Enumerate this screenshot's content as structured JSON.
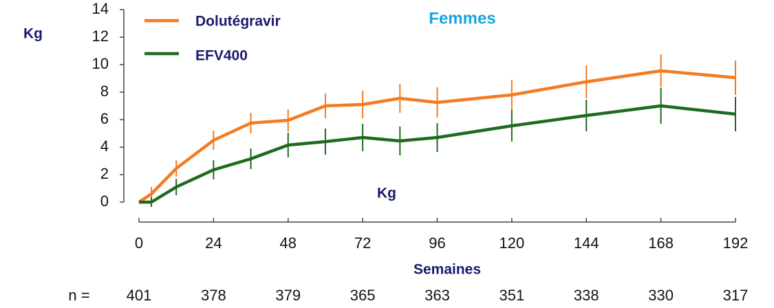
{
  "chart_data": {
    "type": "line",
    "title": "Femmes",
    "ylabel": "Kg",
    "xlabel": "Semaines",
    "annotation": "Kg",
    "series": [
      {
        "name": "Dolutégravir",
        "color": "#f47b20",
        "x": [
          0,
          4,
          12,
          24,
          36,
          48,
          60,
          72,
          84,
          96,
          120,
          144,
          168,
          192
        ],
        "values": [
          0,
          0.6,
          2.45,
          4.5,
          5.75,
          5.95,
          7.0,
          7.1,
          7.55,
          7.25,
          7.8,
          8.75,
          9.55,
          9.05
        ],
        "errors": [
          0,
          0.5,
          0.6,
          0.7,
          0.75,
          0.8,
          0.9,
          1.0,
          1.05,
          1.1,
          1.1,
          1.2,
          1.2,
          1.25
        ]
      },
      {
        "name": "EFV400",
        "color": "#1e6b1e",
        "x": [
          0,
          4,
          12,
          24,
          36,
          48,
          60,
          72,
          84,
          96,
          120,
          144,
          168,
          192
        ],
        "values": [
          0,
          0,
          1.1,
          2.35,
          3.15,
          4.15,
          4.4,
          4.7,
          4.45,
          4.7,
          5.55,
          6.3,
          7.0,
          6.4
        ],
        "errors": [
          0,
          0.35,
          0.6,
          0.7,
          0.75,
          0.9,
          0.95,
          1.0,
          1.05,
          1.05,
          1.15,
          1.15,
          1.3,
          1.25
        ]
      }
    ],
    "xlim": [
      0,
      192
    ],
    "xticks": [
      0,
      24,
      48,
      72,
      96,
      120,
      144,
      168,
      192
    ],
    "ylim": [
      0,
      14
    ],
    "yticks": [
      0,
      2,
      4,
      6,
      8,
      10,
      12,
      14
    ],
    "legend": "upper left",
    "n_label": "n =",
    "n_values": [
      401,
      378,
      379,
      365,
      363,
      351,
      338,
      330,
      317
    ]
  }
}
